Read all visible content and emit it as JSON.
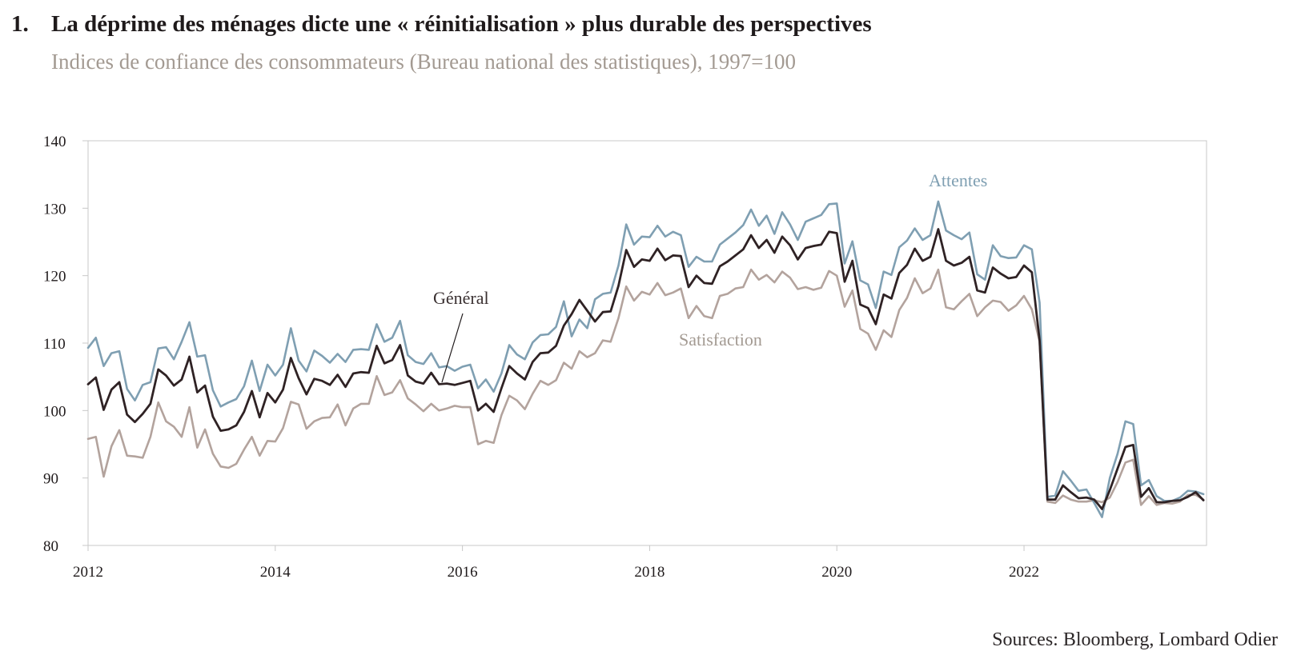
{
  "header": {
    "number": "1.",
    "title": "La déprime des ménages dicte une « réinitialisation » plus durable des perspectives",
    "subtitle": "Indices de confiance des consommateurs (Bureau national des statistiques), 1997=100"
  },
  "footer": {
    "source": "Sources: Bloomberg, Lombard Odier"
  },
  "colors": {
    "attentes": "#7f9fb2",
    "general": "#2f2224",
    "satisfaction": "#b3a39d",
    "frame": "#c8c8c8"
  },
  "chart_data": {
    "type": "line",
    "title": "La déprime des ménages dicte une « réinitialisation » plus durable des perspectives",
    "subtitle": "Indices de confiance des consommateurs (Bureau national des statistiques), 1997=100",
    "xlim": [
      2012,
      2023.95
    ],
    "ylim": [
      80,
      140
    ],
    "yticks": [
      80,
      90,
      100,
      110,
      120,
      130,
      140
    ],
    "xticks": [
      2012,
      2014,
      2016,
      2018,
      2020,
      2022
    ],
    "grid": false,
    "legend": "inline labels",
    "annotations": [
      {
        "text": "Attentes",
        "series": "Attentes"
      },
      {
        "text": "Général",
        "series": "Général"
      },
      {
        "text": "Satisfaction",
        "series": "Satisfaction"
      }
    ],
    "x_start": "2012-01",
    "x_frequency": "monthly",
    "series": [
      {
        "name": "Attentes",
        "values": [
          109.3,
          110.8,
          106.6,
          108.5,
          108.8,
          103.2,
          101.5,
          103.8,
          104.2,
          109.2,
          109.4,
          107.6,
          110.2,
          113.1,
          108.0,
          108.2,
          103.0,
          100.6,
          101.2,
          101.7,
          103.6,
          107.4,
          102.9,
          106.8,
          105.2,
          106.8,
          112.2,
          107.4,
          105.8,
          108.9,
          108.1,
          107.1,
          108.4,
          107.2,
          109.0,
          109.1,
          109.0,
          112.8,
          110.2,
          110.8,
          113.3,
          108.2,
          107.2,
          106.9,
          108.5,
          106.4,
          106.6,
          105.9,
          106.5,
          106.8,
          103.3,
          104.6,
          102.8,
          105.5,
          109.7,
          108.3,
          107.6,
          110.1,
          111.2,
          111.3,
          112.4,
          116.2,
          111.0,
          113.5,
          112.2,
          116.5,
          117.3,
          117.5,
          121.5,
          127.6,
          124.6,
          125.8,
          125.7,
          127.4,
          125.8,
          126.5,
          126.0,
          121.3,
          122.8,
          122.1,
          122.1,
          124.6,
          125.5,
          126.4,
          127.5,
          129.8,
          127.4,
          128.9,
          126.2,
          129.4,
          127.6,
          125.3,
          128.0,
          128.5,
          129.0,
          130.6,
          130.7,
          121.8,
          125.1,
          119.3,
          118.7,
          115.2,
          120.6,
          120.1,
          124.2,
          125.2,
          127.0,
          125.3,
          126.0,
          131.0,
          126.7,
          126.0,
          125.4,
          126.4,
          120.2,
          119.4,
          124.5,
          122.9,
          122.6,
          122.7,
          124.5,
          123.9,
          116.0,
          87.2,
          87.4,
          91.0,
          89.6,
          88.1,
          88.3,
          86.3,
          84.2,
          90.0,
          93.6,
          98.4,
          98.0,
          88.9,
          89.7,
          87.3,
          86.6,
          86.6,
          87.1,
          88.1,
          88.0,
          87.6
        ]
      },
      {
        "name": "Général",
        "values": [
          103.9,
          104.9,
          100.1,
          103.1,
          104.2,
          99.4,
          98.3,
          99.5,
          101.0,
          106.1,
          105.2,
          103.7,
          104.6,
          108.0,
          102.7,
          103.7,
          99.1,
          97.0,
          97.2,
          97.8,
          99.8,
          102.9,
          99.0,
          102.6,
          101.2,
          103.1,
          107.8,
          104.8,
          102.4,
          104.7,
          104.4,
          103.8,
          105.3,
          103.5,
          105.5,
          105.7,
          105.6,
          109.6,
          107.0,
          107.5,
          109.7,
          105.2,
          104.3,
          104.0,
          105.6,
          103.9,
          104.0,
          103.8,
          104.1,
          104.4,
          100.0,
          101.0,
          99.8,
          103.3,
          106.6,
          105.5,
          104.6,
          107.2,
          108.5,
          108.6,
          109.6,
          112.6,
          114.3,
          116.4,
          114.8,
          113.2,
          114.6,
          114.7,
          118.5,
          123.8,
          121.3,
          122.4,
          122.2,
          124.0,
          122.3,
          123.0,
          122.9,
          118.3,
          120.0,
          118.9,
          118.8,
          121.4,
          122.1,
          123.0,
          123.9,
          126.0,
          124.1,
          125.3,
          123.4,
          125.8,
          124.5,
          122.4,
          124.1,
          124.4,
          124.6,
          126.5,
          126.3,
          119.1,
          122.2,
          115.7,
          115.2,
          112.8,
          117.2,
          116.6,
          120.4,
          121.6,
          124.0,
          122.2,
          122.8,
          126.9,
          122.2,
          121.5,
          121.9,
          122.8,
          117.8,
          117.5,
          121.2,
          120.3,
          119.6,
          119.8,
          121.5,
          120.5,
          110.4,
          86.8,
          86.8,
          88.9,
          87.9,
          87.0,
          87.1,
          86.8,
          85.4,
          88.2,
          91.4,
          94.6,
          94.9,
          87.2,
          88.5,
          86.4,
          86.4,
          86.6,
          86.7,
          87.2,
          87.9,
          86.7
        ]
      },
      {
        "name": "Satisfaction",
        "values": [
          95.8,
          96.1,
          90.2,
          94.7,
          97.1,
          93.3,
          93.2,
          93.0,
          96.1,
          101.2,
          98.4,
          97.6,
          96.1,
          100.5,
          94.5,
          97.2,
          93.6,
          91.7,
          91.5,
          92.1,
          94.2,
          96.1,
          93.3,
          95.5,
          95.4,
          97.4,
          101.3,
          100.9,
          97.3,
          98.4,
          98.9,
          99.0,
          100.9,
          97.8,
          100.3,
          101.0,
          101.0,
          105.1,
          102.3,
          102.7,
          104.5,
          101.8,
          100.9,
          99.9,
          101.0,
          100.0,
          100.3,
          100.7,
          100.5,
          100.5,
          95.0,
          95.5,
          95.2,
          99.3,
          102.2,
          101.5,
          100.2,
          102.5,
          104.4,
          103.8,
          104.5,
          107.1,
          106.2,
          108.8,
          107.9,
          108.5,
          110.4,
          110.2,
          113.7,
          118.4,
          116.3,
          117.6,
          117.2,
          118.9,
          117.1,
          117.5,
          118.1,
          113.7,
          115.5,
          114.0,
          113.7,
          117.0,
          117.3,
          118.1,
          118.3,
          120.9,
          119.4,
          120.1,
          119.0,
          120.6,
          119.7,
          118.0,
          118.3,
          117.9,
          118.2,
          120.7,
          120.0,
          115.4,
          117.8,
          112.1,
          111.4,
          109.0,
          111.9,
          110.9,
          114.9,
          116.7,
          119.6,
          117.4,
          118.1,
          120.9,
          115.3,
          115.0,
          116.2,
          117.3,
          114.0,
          115.3,
          116.3,
          116.1,
          114.8,
          115.6,
          117.0,
          115.0,
          110.2,
          86.5,
          86.3,
          87.4,
          86.8,
          86.5,
          86.5,
          86.7,
          86.4,
          87.1,
          89.4,
          92.3,
          92.7,
          86.0,
          87.3,
          86.0,
          86.3,
          86.2,
          86.5,
          87.5,
          87.5,
          86.8
        ]
      }
    ]
  }
}
